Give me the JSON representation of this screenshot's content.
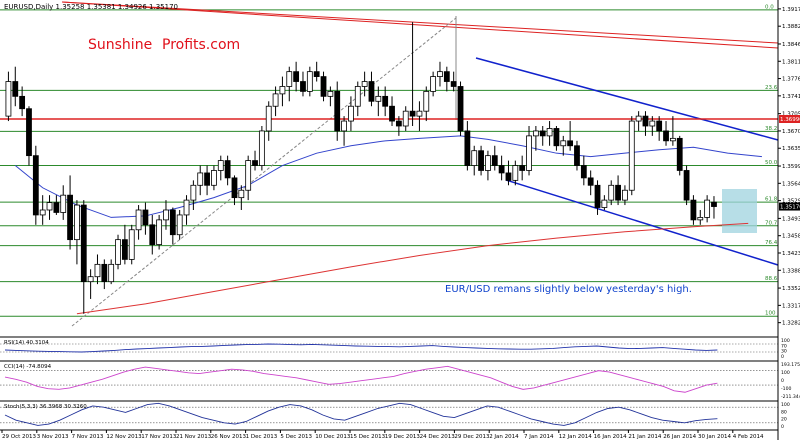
{
  "header": {
    "symbol_line": "EURUSD,Daily  1.35258 1.35381 1.34926 1.35170",
    "brand_red": "Sunshine",
    "brand_rest": "Profits.com"
  },
  "annotation": "EUR/USD remans slightly below yesterday's high.",
  "chart_data": {
    "type": "candlestick",
    "symbol": "EURUSD",
    "timeframe": "Daily",
    "last_ohlc": {
      "open": 1.35258,
      "high": 1.35381,
      "low": 1.34926,
      "close": 1.3517
    },
    "current_price_label": "1.35170",
    "resistance_label": "1.36990",
    "price_axis": {
      "range": [
        1.3255,
        1.3935
      ],
      "ticks": [
        "1.39170",
        "1.38820",
        "1.38460",
        "1.38110",
        "1.37760",
        "1.37410",
        "1.37050",
        "1.36700",
        "1.36350",
        "1.35990",
        "1.35640",
        "1.35290",
        "1.34930",
        "1.34580",
        "1.34230",
        "1.33880",
        "1.33520",
        "1.33170",
        "1.32820"
      ]
    },
    "x_axis_labels": [
      "29 Oct 2013",
      "3 Nov 2013",
      "7 Nov 2013",
      "12 Nov 2013",
      "17 Nov 2013",
      "21 Nov 2013",
      "26 Nov 2013",
      "1 Dec 2013",
      "5 Dec 2013",
      "10 Dec 2013",
      "15 Dec 2013",
      "19 Dec 2013",
      "24 Dec 2013",
      "29 Dec 2013",
      "2 Jan 2014",
      "7 Jan 2014",
      "12 Jan 2014",
      "16 Jan 2014",
      "21 Jan 2014",
      "26 Jan 2014",
      "30 Jan 2014",
      "4 Feb 2014"
    ],
    "fibonacci_levels": [
      {
        "label": "0.0",
        "price": 1.3915
      },
      {
        "label": "23.6",
        "price": 1.3752
      },
      {
        "label": "38.2",
        "price": 1.3669
      },
      {
        "label": "50.0",
        "price": 1.36
      },
      {
        "label": "61.8",
        "price": 1.3526
      },
      {
        "label": "70.7",
        "price": 1.3478
      },
      {
        "label": "76.4",
        "price": 1.3438
      },
      {
        "label": "88.6",
        "price": 1.3365
      },
      {
        "label": "100",
        "price": 1.3295
      }
    ],
    "moving_averages": [
      {
        "color": "#3344cc",
        "points": [
          [
            1,
            1.36
          ],
          [
            5,
            1.3555
          ],
          [
            10,
            1.352
          ],
          [
            15,
            1.3495
          ],
          [
            20,
            1.3498
          ],
          [
            25,
            1.3515
          ],
          [
            30,
            1.3535
          ],
          [
            35,
            1.356
          ],
          [
            40,
            1.36
          ],
          [
            45,
            1.3625
          ],
          [
            50,
            1.364
          ],
          [
            55,
            1.365
          ],
          [
            60,
            1.3655
          ],
          [
            66,
            1.366
          ],
          [
            70,
            1.3653
          ],
          [
            75,
            1.364
          ],
          [
            80,
            1.3625
          ],
          [
            85,
            1.3618
          ],
          [
            90,
            1.3625
          ],
          [
            95,
            1.3632
          ],
          [
            100,
            1.3637
          ],
          [
            105,
            1.3625
          ],
          [
            110,
            1.3618
          ]
        ]
      },
      {
        "color": "#dd3333",
        "points": [
          [
            10,
            1.33
          ],
          [
            20,
            1.332
          ],
          [
            30,
            1.3345
          ],
          [
            40,
            1.337
          ],
          [
            50,
            1.3395
          ],
          [
            60,
            1.3418
          ],
          [
            70,
            1.3438
          ],
          [
            80,
            1.3453
          ],
          [
            90,
            1.3466
          ],
          [
            100,
            1.3476
          ],
          [
            108,
            1.3483
          ]
        ]
      }
    ],
    "candles": [
      [
        1.37,
        1.379,
        1.369,
        1.377
      ],
      [
        1.377,
        1.38,
        1.372,
        1.374
      ],
      [
        1.374,
        1.376,
        1.37,
        1.3715
      ],
      [
        1.3715,
        1.372,
        1.36,
        1.362
      ],
      [
        1.362,
        1.364,
        1.348,
        1.35
      ],
      [
        1.35,
        1.354,
        1.348,
        1.351
      ],
      [
        1.351,
        1.354,
        1.349,
        1.3525
      ],
      [
        1.3525,
        1.354,
        1.35,
        1.3505
      ],
      [
        1.3505,
        1.356,
        1.349,
        1.354
      ],
      [
        1.354,
        1.358,
        1.343,
        1.345
      ],
      [
        1.345,
        1.353,
        1.34,
        1.352
      ],
      [
        1.352,
        1.353,
        1.33,
        1.3365
      ],
      [
        1.3365,
        1.339,
        1.333,
        1.3375
      ],
      [
        1.3375,
        1.342,
        1.336,
        1.34
      ],
      [
        1.34,
        1.341,
        1.335,
        1.3365
      ],
      [
        1.3365,
        1.341,
        1.336,
        1.34
      ],
      [
        1.34,
        1.346,
        1.339,
        1.345
      ],
      [
        1.345,
        1.348,
        1.34,
        1.341
      ],
      [
        1.341,
        1.348,
        1.34,
        1.347
      ],
      [
        1.347,
        1.352,
        1.345,
        1.351
      ],
      [
        1.351,
        1.3525,
        1.346,
        1.348
      ],
      [
        1.348,
        1.35,
        1.342,
        1.344
      ],
      [
        1.344,
        1.35,
        1.343,
        1.349
      ],
      [
        1.349,
        1.353,
        1.347,
        1.351
      ],
      [
        1.351,
        1.3515,
        1.344,
        1.346
      ],
      [
        1.346,
        1.351,
        1.345,
        1.35
      ],
      [
        1.35,
        1.354,
        1.348,
        1.353
      ],
      [
        1.353,
        1.357,
        1.351,
        1.356
      ],
      [
        1.356,
        1.36,
        1.354,
        1.3585
      ],
      [
        1.3585,
        1.36,
        1.354,
        1.356
      ],
      [
        1.356,
        1.36,
        1.355,
        1.359
      ],
      [
        1.359,
        1.362,
        1.357,
        1.361
      ],
      [
        1.361,
        1.362,
        1.356,
        1.3575
      ],
      [
        1.3575,
        1.358,
        1.352,
        1.3535
      ],
      [
        1.3535,
        1.356,
        1.351,
        1.355
      ],
      [
        1.355,
        1.362,
        1.353,
        1.361
      ],
      [
        1.361,
        1.363,
        1.359,
        1.36
      ],
      [
        1.36,
        1.368,
        1.359,
        1.367
      ],
      [
        1.367,
        1.373,
        1.365,
        1.372
      ],
      [
        1.372,
        1.376,
        1.37,
        1.3745
      ],
      [
        1.3745,
        1.378,
        1.372,
        1.376
      ],
      [
        1.376,
        1.38,
        1.373,
        1.379
      ],
      [
        1.379,
        1.381,
        1.375,
        1.377
      ],
      [
        1.377,
        1.379,
        1.374,
        1.375
      ],
      [
        1.375,
        1.38,
        1.374,
        1.379
      ],
      [
        1.379,
        1.381,
        1.377,
        1.378
      ],
      [
        1.378,
        1.379,
        1.373,
        1.374
      ],
      [
        1.374,
        1.376,
        1.372,
        1.375
      ],
      [
        1.375,
        1.377,
        1.365,
        1.367
      ],
      [
        1.367,
        1.37,
        1.364,
        1.369
      ],
      [
        1.369,
        1.374,
        1.367,
        1.372
      ],
      [
        1.372,
        1.377,
        1.37,
        1.376
      ],
      [
        1.376,
        1.379,
        1.374,
        1.377
      ],
      [
        1.377,
        1.379,
        1.372,
        1.373
      ],
      [
        1.373,
        1.376,
        1.37,
        1.374
      ],
      [
        1.374,
        1.376,
        1.37,
        1.372
      ],
      [
        1.372,
        1.374,
        1.368,
        1.369
      ],
      [
        1.369,
        1.37,
        1.366,
        1.368
      ],
      [
        1.368,
        1.372,
        1.367,
        1.371
      ],
      [
        1.371,
        1.389,
        1.368,
        1.37
      ],
      [
        1.37,
        1.373,
        1.367,
        1.371
      ],
      [
        1.371,
        1.376,
        1.369,
        1.375
      ],
      [
        1.375,
        1.379,
        1.374,
        1.378
      ],
      [
        1.378,
        1.381,
        1.376,
        1.379
      ],
      [
        1.379,
        1.38,
        1.375,
        1.377
      ],
      [
        1.377,
        1.379,
        1.375,
        1.376
      ],
      [
        1.376,
        1.377,
        1.366,
        1.367
      ],
      [
        1.367,
        1.369,
        1.359,
        1.36
      ],
      [
        1.36,
        1.364,
        1.358,
        1.363
      ],
      [
        1.363,
        1.364,
        1.358,
        1.359
      ],
      [
        1.359,
        1.363,
        1.357,
        1.362
      ],
      [
        1.362,
        1.364,
        1.359,
        1.36
      ],
      [
        1.36,
        1.362,
        1.357,
        1.3585
      ],
      [
        1.3585,
        1.361,
        1.356,
        1.357
      ],
      [
        1.357,
        1.361,
        1.356,
        1.36
      ],
      [
        1.36,
        1.362,
        1.357,
        1.359
      ],
      [
        1.359,
        1.368,
        1.358,
        1.366
      ],
      [
        1.366,
        1.368,
        1.363,
        1.367
      ],
      [
        1.367,
        1.368,
        1.364,
        1.366
      ],
      [
        1.366,
        1.369,
        1.364,
        1.3675
      ],
      [
        1.3675,
        1.368,
        1.363,
        1.364
      ],
      [
        1.364,
        1.366,
        1.362,
        1.365
      ],
      [
        1.365,
        1.369,
        1.363,
        1.364
      ],
      [
        1.364,
        1.365,
        1.359,
        1.36
      ],
      [
        1.36,
        1.362,
        1.356,
        1.3575
      ],
      [
        1.3575,
        1.359,
        1.354,
        1.356
      ],
      [
        1.356,
        1.357,
        1.35,
        1.3515
      ],
      [
        1.3515,
        1.354,
        1.351,
        1.353
      ],
      [
        1.353,
        1.357,
        1.352,
        1.356
      ],
      [
        1.356,
        1.358,
        1.352,
        1.353
      ],
      [
        1.353,
        1.356,
        1.352,
        1.355
      ],
      [
        1.355,
        1.37,
        1.354,
        1.369
      ],
      [
        1.369,
        1.371,
        1.367,
        1.37
      ],
      [
        1.37,
        1.371,
        1.366,
        1.368
      ],
      [
        1.368,
        1.37,
        1.366,
        1.369
      ],
      [
        1.369,
        1.37,
        1.365,
        1.367
      ],
      [
        1.367,
        1.369,
        1.364,
        1.365
      ],
      [
        1.365,
        1.37,
        1.364,
        1.3655
      ],
      [
        1.3655,
        1.366,
        1.358,
        1.359
      ],
      [
        1.359,
        1.36,
        1.352,
        1.353
      ],
      [
        1.353,
        1.354,
        1.348,
        1.349
      ],
      [
        1.349,
        1.351,
        1.348,
        1.3495
      ],
      [
        1.3495,
        1.354,
        1.3485,
        1.353
      ],
      [
        1.35258,
        1.35381,
        1.34926,
        1.3517
      ]
    ],
    "indicators": [
      {
        "label": "RSI(14) 40.3104",
        "range": [
          0,
          100
        ],
        "levels": [
          30,
          70
        ],
        "tick_labels": [
          "100",
          "70",
          "30",
          "0"
        ],
        "line_color": "#2233aa",
        "values": [
          40,
          38,
          36,
          34,
          33,
          32,
          31,
          30,
          32,
          35,
          38,
          42,
          45,
          47,
          50,
          52,
          55,
          57,
          58,
          60,
          63,
          65,
          67,
          68,
          70,
          69,
          67,
          66,
          68,
          66,
          64,
          62,
          60,
          59,
          58,
          57,
          56,
          58,
          60,
          62,
          58,
          55,
          52,
          50,
          48,
          46,
          45,
          44,
          44,
          46,
          48,
          52,
          56,
          58,
          60,
          55,
          50,
          47,
          48,
          50,
          52,
          48,
          44,
          40,
          38,
          40
        ]
      },
      {
        "label": "CCI(14) -74.8094",
        "range": [
          -280,
          220
        ],
        "levels": [
          100,
          -100
        ],
        "tick_labels": [
          "193.1756",
          "100",
          "0",
          "-100",
          "-211.3448"
        ],
        "line_color": "#cc44cc",
        "values": [
          10,
          -20,
          -60,
          -120,
          -150,
          -160,
          -140,
          -100,
          -60,
          -20,
          30,
          80,
          120,
          150,
          130,
          110,
          90,
          70,
          60,
          80,
          100,
          120,
          110,
          90,
          60,
          40,
          20,
          0,
          -30,
          -60,
          -90,
          -80,
          -60,
          -40,
          -20,
          0,
          20,
          60,
          90,
          120,
          140,
          160,
          120,
          80,
          40,
          0,
          -60,
          -120,
          -160,
          -140,
          -100,
          -60,
          -20,
          20,
          60,
          100,
          80,
          40,
          0,
          -40,
          -80,
          -120,
          -180,
          -200,
          -150,
          -100,
          -75
        ]
      },
      {
        "label": "Stoch(5,3,3) 36.3968 30.3260",
        "range": [
          0,
          100
        ],
        "levels": [
          80,
          20
        ],
        "tick_labels": [
          "100",
          "80",
          "20",
          "0"
        ],
        "line_color": "#223399",
        "values": [
          50,
          30,
          20,
          10,
          15,
          30,
          50,
          70,
          85,
          80,
          70,
          60,
          75,
          90,
          95,
          85,
          70,
          55,
          40,
          30,
          20,
          15,
          25,
          45,
          65,
          80,
          90,
          85,
          70,
          50,
          35,
          30,
          45,
          60,
          75,
          85,
          95,
          90,
          75,
          60,
          45,
          40,
          55,
          70,
          85,
          80,
          65,
          50,
          35,
          25,
          15,
          10,
          20,
          40,
          60,
          75,
          80,
          70,
          55,
          40,
          30,
          25,
          20,
          28,
          33,
          36
        ]
      }
    ]
  }
}
